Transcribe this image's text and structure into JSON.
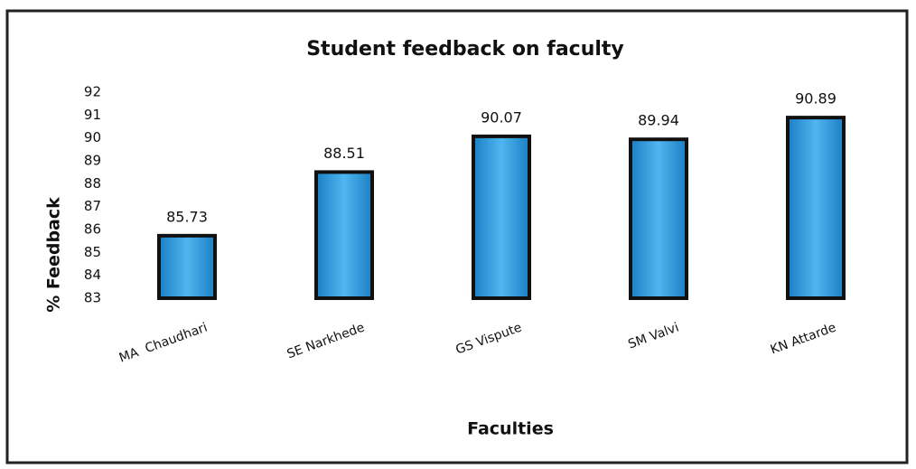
{
  "chart_data": {
    "type": "bar",
    "title": "Student feedback on faculty",
    "x_label": "Faculties",
    "y_label": "% Feedback",
    "categories": [
      "MA  Chaudhari",
      "SE Narkhede",
      "GS Vispute",
      "SM Valvi",
      "KN Attarde"
    ],
    "values": [
      85.73,
      88.51,
      90.07,
      89.94,
      90.89
    ],
    "color": "#2f9ee0",
    "ylim": [
      83,
      92
    ],
    "yticks": [
      83,
      84,
      85,
      86,
      87,
      88,
      89,
      90,
      91,
      92
    ],
    "grid": false
  }
}
